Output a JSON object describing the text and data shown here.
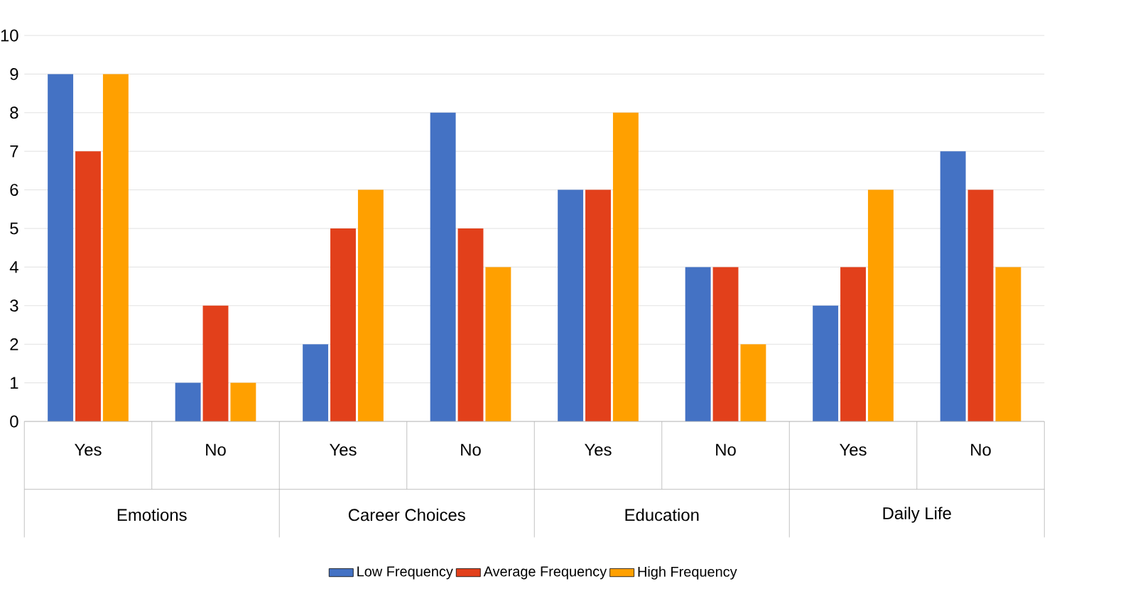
{
  "chart_data": {
    "type": "bar",
    "categories": [
      "Yes",
      "No",
      "Yes",
      "No",
      "Yes",
      "No",
      "Yes",
      "No"
    ],
    "series": [
      {
        "name": "Low Frequency",
        "color": "#4472c4",
        "values": [
          9,
          1,
          2,
          8,
          6,
          4,
          3,
          7
        ]
      },
      {
        "name": "Average Frequency",
        "color": "#e2401b",
        "values": [
          7,
          3,
          5,
          5,
          6,
          4,
          4,
          6
        ]
      },
      {
        "name": "High Frequency",
        "color": "#ffa000",
        "values": [
          9,
          1,
          6,
          4,
          8,
          2,
          6,
          4
        ]
      }
    ],
    "ylim": [
      0,
      10
    ],
    "yticks": [
      0,
      1,
      2,
      3,
      4,
      5,
      6,
      7,
      8,
      9,
      10
    ],
    "grid": "y",
    "legend": "bottom",
    "annotations": [
      "Emotions",
      "Career Choices",
      "Education",
      "Daily Life"
    ]
  }
}
